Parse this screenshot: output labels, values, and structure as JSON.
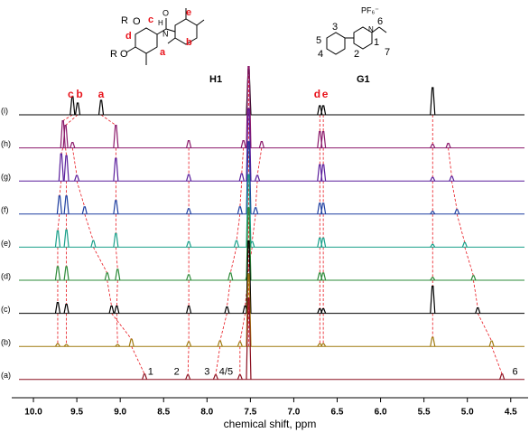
{
  "chart_data": {
    "type": "nmr",
    "xlabel": "chemical shift, ppm",
    "xlim": [
      10.25,
      4.3
    ],
    "xticks": [
      {
        "value": 10,
        "label": "10.0"
      },
      9.5,
      {
        "value": 9,
        "label": "9.0"
      },
      8.5,
      {
        "value": 8,
        "label": "8.0"
      },
      7.5,
      {
        "value": 7,
        "label": "7.0"
      },
      6.5,
      {
        "value": 6,
        "label": "6.0"
      },
      5.5,
      {
        "value": 5,
        "label": "5.0"
      },
      4.5
    ],
    "series": [
      {
        "name": "(i)",
        "color": "#000000",
        "x": [
          9.55,
          9.49,
          9.22,
          6.7,
          6.66,
          null,
          null,
          null,
          null,
          null,
          7.52,
          5.4
        ],
        "values": [
          2.0,
          1.3,
          1.6,
          1.0,
          1.0,
          null,
          null,
          null,
          null,
          null,
          5,
          3.0
        ]
      },
      {
        "name": "(h)",
        "color": "#8b1a6b",
        "x": [
          9.66,
          9.63,
          9.05,
          6.7,
          6.66,
          9.55,
          8.21,
          7.58,
          7.37,
          5.22,
          7.52,
          5.4
        ],
        "values": [
          3.0,
          2.5,
          2.5,
          1.8,
          1.8,
          0.6,
          0.8,
          0.8,
          0.7,
          0.5,
          9,
          0.4
        ]
      },
      {
        "name": "(g)",
        "color": "#5a1e9c",
        "x": [
          9.68,
          9.62,
          9.05,
          6.7,
          6.66,
          9.5,
          8.21,
          7.6,
          7.42,
          5.18,
          7.52,
          5.4
        ],
        "values": [
          3.0,
          2.8,
          2.5,
          1.8,
          1.8,
          0.6,
          0.7,
          0.8,
          0.6,
          0.5,
          8,
          0.4
        ]
      },
      {
        "name": "(f)",
        "color": "#1f3fa0",
        "x": [
          9.7,
          9.62,
          9.05,
          6.7,
          6.66,
          9.41,
          8.21,
          7.62,
          7.44,
          5.12,
          7.52,
          5.4
        ],
        "values": [
          2.0,
          2.0,
          1.5,
          1.2,
          1.2,
          0.8,
          0.6,
          0.8,
          0.7,
          0.5,
          8,
          0.3
        ]
      },
      {
        "name": "(e)",
        "color": "#1aa08a",
        "x": [
          9.72,
          9.62,
          9.05,
          6.7,
          6.66,
          9.31,
          8.21,
          7.66,
          7.48,
          5.03,
          7.52,
          5.4
        ],
        "values": [
          1.8,
          1.9,
          1.5,
          1.0,
          1.0,
          0.7,
          0.6,
          0.7,
          0.6,
          0.5,
          8,
          0.3
        ]
      },
      {
        "name": "(d)",
        "color": "#2e8b3a",
        "x": [
          9.72,
          9.62,
          9.03,
          6.7,
          6.66,
          9.15,
          8.21,
          7.73,
          7.53,
          4.93,
          7.52,
          5.4
        ],
        "values": [
          1.5,
          1.5,
          1.2,
          0.8,
          0.8,
          0.8,
          0.6,
          0.8,
          0.7,
          0.5,
          8,
          0.3
        ]
      },
      {
        "name": "(c)",
        "color": "#000000",
        "x": [
          9.72,
          9.62,
          9.04,
          6.7,
          6.66,
          9.1,
          8.21,
          7.77,
          7.56,
          4.88,
          7.52,
          5.4
        ],
        "values": [
          1.2,
          1.0,
          0.8,
          0.5,
          0.5,
          0.8,
          0.8,
          0.7,
          0.8,
          0.6,
          8,
          3.0
        ]
      },
      {
        "name": "(b)",
        "color": "#a07a10",
        "x": [
          9.72,
          9.62,
          9.03,
          6.7,
          6.66,
          8.87,
          8.21,
          7.85,
          7.62,
          4.72,
          7.52,
          5.4
        ],
        "values": [
          0.3,
          0.2,
          0.2,
          0.3,
          0.3,
          0.8,
          0.5,
          0.6,
          0.5,
          0.6,
          8,
          1.0
        ]
      },
      {
        "name": "(a)",
        "color": "#8b1020",
        "x": [
          null,
          null,
          null,
          null,
          null,
          8.72,
          8.22,
          7.9,
          7.62,
          4.6,
          7.52,
          null
        ],
        "values": [
          null,
          null,
          null,
          null,
          null,
          0.6,
          0.5,
          0.5,
          0.5,
          0.6,
          9,
          null
        ]
      }
    ],
    "annotations": [
      {
        "text": "c",
        "x": 9.57,
        "series": 0,
        "color": "#e8141c"
      },
      {
        "text": "b",
        "x": 9.47,
        "series": 0,
        "color": "#e8141c"
      },
      {
        "text": "a",
        "x": 9.22,
        "series": 0,
        "color": "#e8141c"
      },
      {
        "text": "d",
        "x": 6.73,
        "series": 0,
        "color": "#e8141c"
      },
      {
        "text": "e",
        "x": 6.64,
        "series": 0,
        "color": "#e8141c"
      },
      {
        "text": "1",
        "x": 8.65,
        "series": 8,
        "color": "#000000"
      },
      {
        "text": "2",
        "x": 8.35,
        "series": 8,
        "color": "#000000"
      },
      {
        "text": "3",
        "x": 8.0,
        "series": 8,
        "color": "#000000"
      },
      {
        "text": "4/5",
        "x": 7.78,
        "series": 8,
        "color": "#000000"
      },
      {
        "text": "6",
        "x": 4.45,
        "series": 8,
        "color": "#000000"
      }
    ]
  },
  "structures": {
    "h1": {
      "label": "H1",
      "atoms": [
        "R",
        "O",
        "H",
        "N",
        "O",
        "R",
        "O",
        "c",
        "d",
        "e",
        "b",
        "a"
      ]
    },
    "g1": {
      "label": "G1",
      "counterion": "PF₆⁻",
      "atoms": [
        "3",
        "5",
        "4",
        "2",
        "1",
        "6",
        "7",
        "N"
      ]
    }
  }
}
